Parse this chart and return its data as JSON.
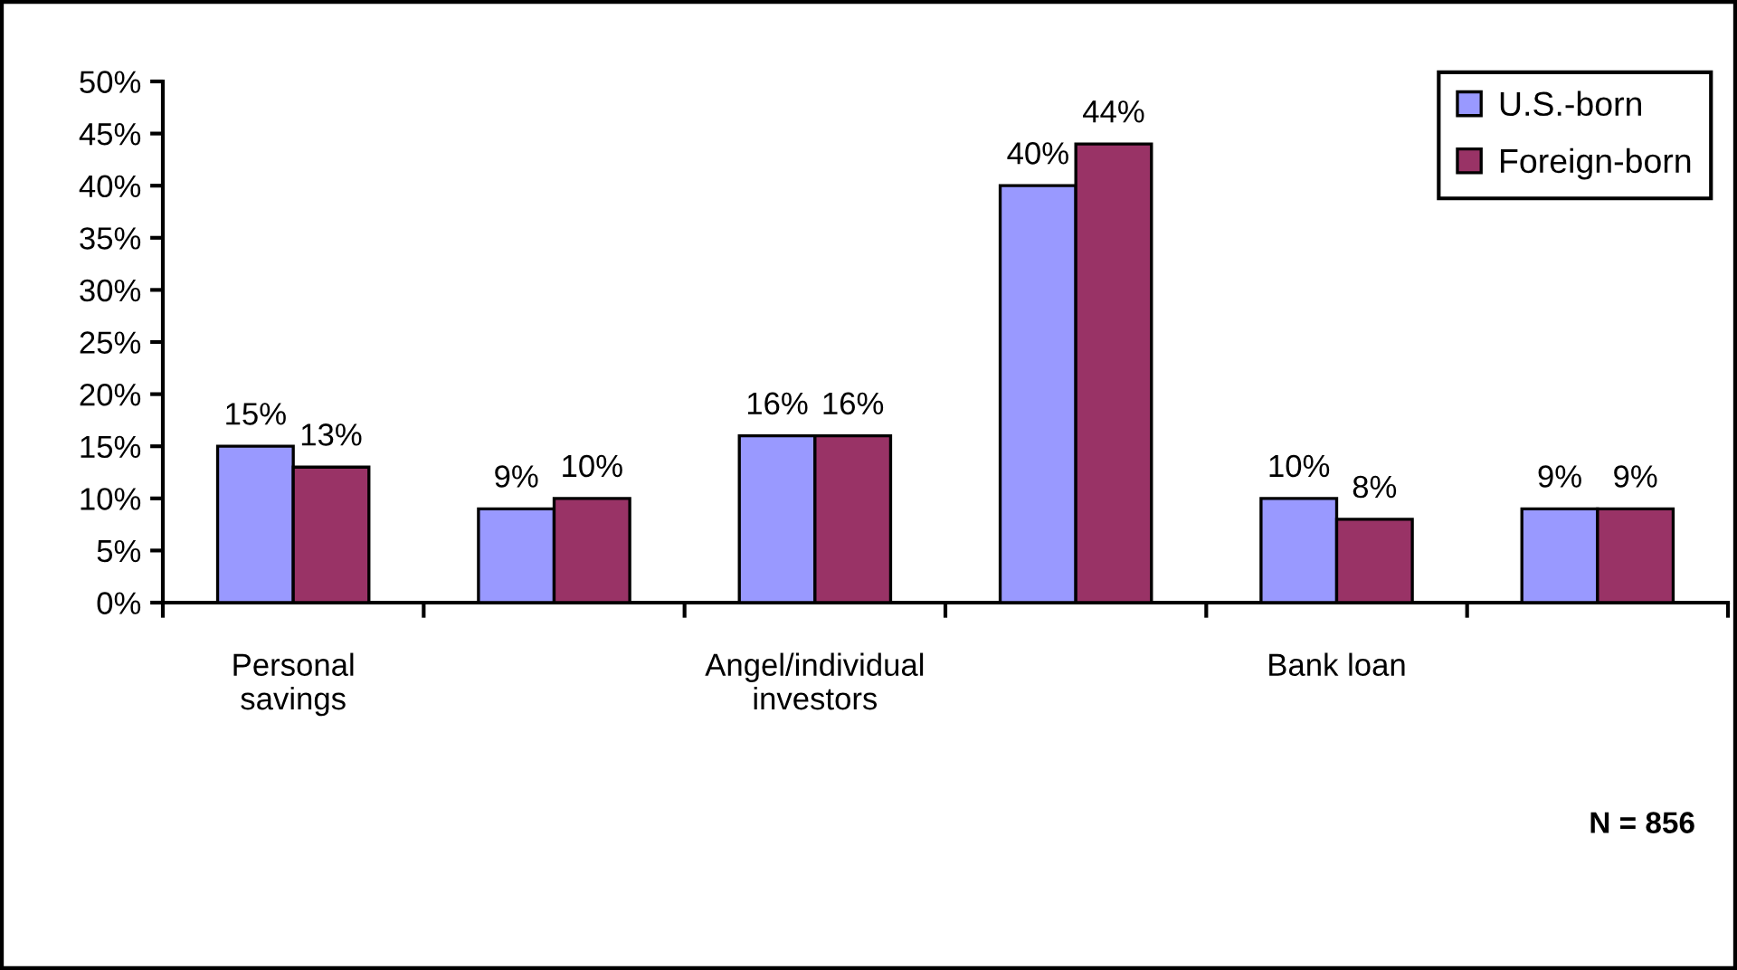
{
  "chart_data": {
    "type": "bar",
    "categories": [
      "Personal\nsavings",
      null,
      "Angel/individual\ninvestors",
      null,
      "Bank loan",
      null
    ],
    "series": [
      {
        "name": "U.S.-born",
        "color": "#9999ff",
        "values": [
          15,
          9,
          16,
          40,
          10,
          9
        ],
        "value_labels": [
          "15%",
          "9%",
          "16%",
          "40%",
          "10%",
          "9%"
        ]
      },
      {
        "name": "Foreign-born",
        "color": "#993366",
        "values": [
          13,
          10,
          16,
          44,
          8,
          9
        ],
        "value_labels": [
          "13%",
          "10%",
          "16%",
          "44%",
          "8%",
          "9%"
        ]
      }
    ],
    "ylim": [
      0,
      50
    ],
    "yticks": [
      {
        "value": 0,
        "label": "0%"
      },
      {
        "value": 5,
        "label": "5%"
      },
      {
        "value": 10,
        "label": "10%"
      },
      {
        "value": 15,
        "label": "15%"
      },
      {
        "value": 20,
        "label": "20%"
      },
      {
        "value": 25,
        "label": "25%"
      },
      {
        "value": 30,
        "label": "30%"
      },
      {
        "value": 35,
        "label": "35%"
      },
      {
        "value": 40,
        "label": "40%"
      },
      {
        "value": 45,
        "label": "45%"
      },
      {
        "value": 50,
        "label": "50%"
      }
    ],
    "legend": "top right",
    "annotations": [
      "N = 856"
    ]
  }
}
